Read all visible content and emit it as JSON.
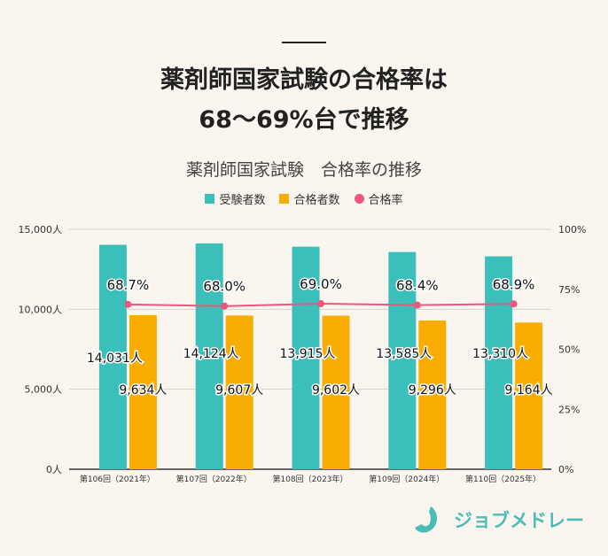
{
  "headline": {
    "line1": "薬剤師国家試験の合格率は",
    "line2": "68～69%台で推移"
  },
  "brand": {
    "name": "ジョブメドレー"
  },
  "colors": {
    "examinees": "#3bbfba",
    "passers": "#f9ad00",
    "rate": "#f0567a",
    "grid": "#d6d2cc",
    "axis": "#666666"
  },
  "chart_data": {
    "type": "bar",
    "title": "薬剤師国家試験　合格率の推移",
    "categories": [
      "第106回（2021年）",
      "第107回（2022年）",
      "第108回（2023年）",
      "第109回（2024年）",
      "第110回（2025年）"
    ],
    "series": [
      {
        "name": "受験者数",
        "type": "bar",
        "axis": "left",
        "values": [
          14031,
          14124,
          13915,
          13585,
          13310
        ],
        "labels": [
          "14,031人",
          "14,124人",
          "13,915人",
          "13,585人",
          "13,310人"
        ]
      },
      {
        "name": "合格者数",
        "type": "bar",
        "axis": "left",
        "values": [
          9634,
          9607,
          9602,
          9296,
          9164
        ],
        "labels": [
          "9,634人",
          "9,607人",
          "9,602人",
          "9,296人",
          "9,164人"
        ]
      },
      {
        "name": "合格率",
        "type": "line",
        "axis": "right",
        "values": [
          68.7,
          68.0,
          69.0,
          68.4,
          68.9
        ],
        "labels": [
          "68.7%",
          "68.0%",
          "69.0%",
          "68.4%",
          "68.9%"
        ]
      }
    ],
    "ylim": [
      0,
      15000
    ],
    "yticks": [
      "0人",
      "5,000人",
      "10,000人",
      "15,000人"
    ],
    "y2lim": [
      0,
      100
    ],
    "y2ticks": [
      "0%",
      "25%",
      "50%",
      "75%",
      "100%"
    ],
    "legend": "top",
    "grid": true
  }
}
